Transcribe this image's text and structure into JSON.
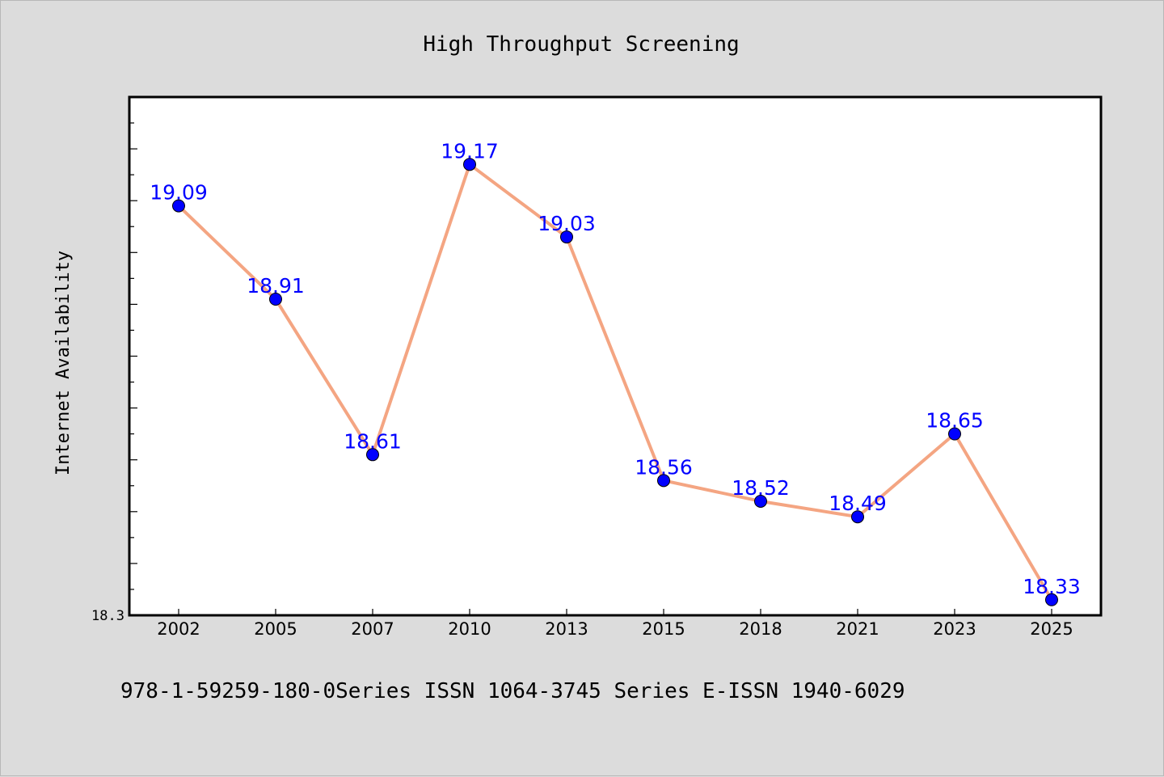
{
  "chart_data": {
    "type": "line",
    "title": "High Throughput Screening",
    "xlabel": "",
    "ylabel": "Internet Availability",
    "categories": [
      "2002",
      "2005",
      "2007",
      "2010",
      "2013",
      "2015",
      "2018",
      "2021",
      "2023",
      "2025"
    ],
    "series": [
      {
        "values": [
          19.09,
          18.91,
          18.61,
          19.17,
          19.03,
          18.56,
          18.52,
          18.49,
          18.65,
          18.33
        ],
        "labels": [
          "19.09",
          "18.91",
          "18.61",
          "19.17",
          "19.03",
          "18.56",
          "18.52",
          "18.49",
          "18.65",
          "18.33"
        ]
      }
    ],
    "ylim": [
      18.3,
      19.3
    ],
    "yticks_labeled": [
      "18.3"
    ],
    "grid": false,
    "colors": {
      "line": "#f4a582",
      "marker": "#0000ff",
      "data_label": "#0000ff",
      "background": "#dcdcdc",
      "plot_background": "#ffffff"
    }
  },
  "footer_text": "978-1-59259-180-0Series ISSN 1064-3745 Series E-ISSN 1940-6029"
}
